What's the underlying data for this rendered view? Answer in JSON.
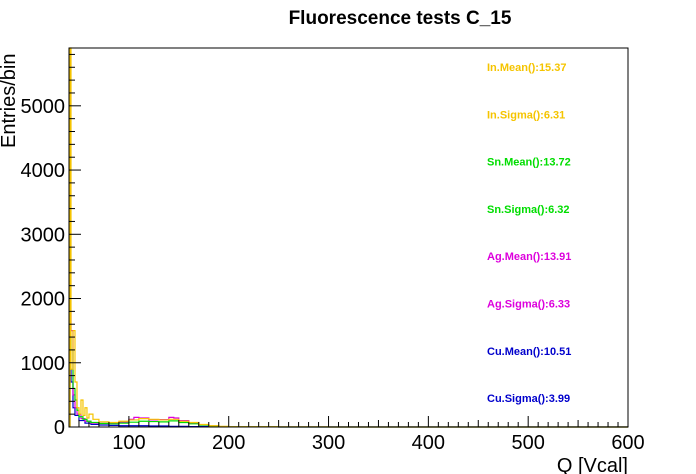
{
  "chart_data": {
    "type": "line",
    "title": "Fluorescence tests C_15",
    "xlabel": "Q [Vcal]",
    "ylabel": "Entries/bin",
    "xlim": [
      40,
      600
    ],
    "ylim": [
      0,
      5900
    ],
    "x_ticks": [
      100,
      200,
      300,
      400,
      500,
      600
    ],
    "y_ticks": [
      0,
      1000,
      2000,
      3000,
      4000,
      5000
    ],
    "grid": false,
    "series": [
      {
        "name": "In",
        "color": "#f5c400",
        "points": [
          [
            41,
            5900
          ],
          [
            42,
            900
          ],
          [
            44,
            1500
          ],
          [
            46,
            700
          ],
          [
            48,
            300
          ],
          [
            50,
            200
          ],
          [
            52,
            420
          ],
          [
            54,
            180
          ],
          [
            56,
            300
          ],
          [
            58,
            140
          ],
          [
            60,
            200
          ],
          [
            64,
            120
          ],
          [
            70,
            80
          ],
          [
            80,
            70
          ],
          [
            90,
            90
          ],
          [
            100,
            110
          ],
          [
            110,
            130
          ],
          [
            120,
            120
          ],
          [
            130,
            110
          ],
          [
            140,
            120
          ],
          [
            150,
            90
          ],
          [
            160,
            70
          ],
          [
            170,
            40
          ],
          [
            180,
            20
          ],
          [
            190,
            10
          ],
          [
            200,
            5
          ],
          [
            250,
            2
          ],
          [
            300,
            0
          ],
          [
            600,
            0
          ]
        ]
      },
      {
        "name": "Sn",
        "color": "#00dd00",
        "points": [
          [
            41,
            1400
          ],
          [
            42,
            1200
          ],
          [
            44,
            600
          ],
          [
            46,
            420
          ],
          [
            48,
            260
          ],
          [
            50,
            160
          ],
          [
            54,
            120
          ],
          [
            58,
            90
          ],
          [
            62,
            70
          ],
          [
            70,
            55
          ],
          [
            80,
            50
          ],
          [
            90,
            60
          ],
          [
            100,
            75
          ],
          [
            110,
            90
          ],
          [
            120,
            85
          ],
          [
            130,
            80
          ],
          [
            140,
            95
          ],
          [
            150,
            70
          ],
          [
            160,
            50
          ],
          [
            170,
            30
          ],
          [
            180,
            15
          ],
          [
            190,
            6
          ],
          [
            200,
            2
          ],
          [
            250,
            0
          ],
          [
            600,
            0
          ]
        ]
      },
      {
        "name": "Ag",
        "color": "#dd00dd",
        "points": [
          [
            41,
            1800
          ],
          [
            42,
            1500
          ],
          [
            44,
            500
          ],
          [
            46,
            300
          ],
          [
            48,
            200
          ],
          [
            52,
            130
          ],
          [
            56,
            90
          ],
          [
            62,
            60
          ],
          [
            70,
            55
          ],
          [
            80,
            60
          ],
          [
            90,
            80
          ],
          [
            100,
            120
          ],
          [
            105,
            150
          ],
          [
            110,
            140
          ],
          [
            120,
            110
          ],
          [
            130,
            115
          ],
          [
            140,
            150
          ],
          [
            145,
            140
          ],
          [
            150,
            100
          ],
          [
            160,
            60
          ],
          [
            170,
            30
          ],
          [
            180,
            15
          ],
          [
            190,
            6
          ],
          [
            200,
            2
          ],
          [
            250,
            0
          ],
          [
            600,
            0
          ]
        ]
      },
      {
        "name": "Cu",
        "color": "#0000cc",
        "points": [
          [
            41,
            900
          ],
          [
            42,
            700
          ],
          [
            44,
            300
          ],
          [
            46,
            180
          ],
          [
            50,
            100
          ],
          [
            56,
            60
          ],
          [
            62,
            40
          ],
          [
            70,
            30
          ],
          [
            80,
            25
          ],
          [
            90,
            20
          ],
          [
            100,
            20
          ],
          [
            120,
            15
          ],
          [
            140,
            10
          ],
          [
            160,
            6
          ],
          [
            180,
            3
          ],
          [
            200,
            1
          ],
          [
            600,
            0
          ]
        ]
      }
    ],
    "stats": [
      {
        "label": "In.Mean():15.37",
        "color": "#f5c400"
      },
      {
        "label": "In.Sigma():6.31",
        "color": "#f5c400"
      },
      {
        "label": "Sn.Mean():13.72",
        "color": "#00dd00"
      },
      {
        "label": "Sn.Sigma():6.32",
        "color": "#00dd00"
      },
      {
        "label": "Ag.Mean():13.91",
        "color": "#dd00dd"
      },
      {
        "label": "Ag.Sigma():6.33",
        "color": "#dd00dd"
      },
      {
        "label": "Cu.Mean():10.51",
        "color": "#0000cc"
      },
      {
        "label": "Cu.Sigma():3.99",
        "color": "#0000cc"
      }
    ]
  }
}
